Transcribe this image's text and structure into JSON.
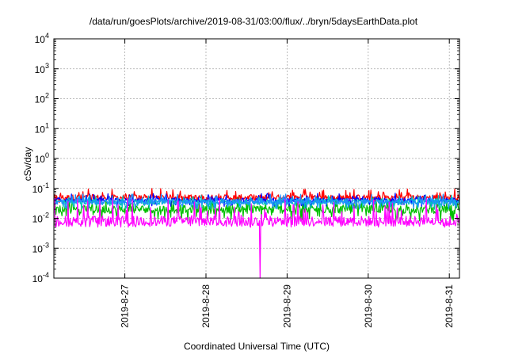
{
  "chart_data": {
    "type": "line",
    "title": "/data/run/goesPlots/archive/2019-08-31/03:00/flux/../bryn/5daysEarthData.plot",
    "xlabel": "Coordinated Universal Time (UTC)",
    "ylabel": "cSv/day",
    "yscale": "log",
    "ylim": [
      0.0001,
      10000
    ],
    "y_ticks": [
      {
        "value": 0.0001,
        "mant": "10",
        "exp": "-4"
      },
      {
        "value": 0.001,
        "mant": "10",
        "exp": "-3"
      },
      {
        "value": 0.01,
        "mant": "10",
        "exp": "-2"
      },
      {
        "value": 0.1,
        "mant": "10",
        "exp": "-1"
      },
      {
        "value": 1,
        "mant": "10",
        "exp": "0"
      },
      {
        "value": 10,
        "mant": "10",
        "exp": "1"
      },
      {
        "value": 100,
        "mant": "10",
        "exp": "2"
      },
      {
        "value": 1000,
        "mant": "10",
        "exp": "3"
      },
      {
        "value": 10000,
        "mant": "10",
        "exp": "4"
      }
    ],
    "xlim": [
      "2019-08-26 03:00",
      "2019-08-31 03:00"
    ],
    "x_ticks": [
      {
        "value": "2019-08-27",
        "label": "2019-8-27"
      },
      {
        "value": "2019-08-28",
        "label": "2019-8-28"
      },
      {
        "value": "2019-08-29",
        "label": "2019-8-29"
      },
      {
        "value": "2019-08-30",
        "label": "2019-8-30"
      },
      {
        "value": "2019-08-31",
        "label": "2019-8-31"
      }
    ],
    "grid": true,
    "series": [
      {
        "color": "#ff0000",
        "values_approx": {
          "typical": 0.05,
          "min": 0.03,
          "max": 0.1
        }
      },
      {
        "color": "#00bf00",
        "values_approx": {
          "typical": 0.02,
          "min": 0.008,
          "max": 0.05
        }
      },
      {
        "color": "#0000ff",
        "values_approx": {
          "typical": 0.04,
          "min": 0.025,
          "max": 0.07
        }
      },
      {
        "color": "#00bfbf",
        "values_approx": {
          "typical": 0.035,
          "min": 0.02,
          "max": 0.06
        }
      },
      {
        "color": "#1e90ff",
        "values_approx": {
          "typical": 0.035,
          "min": 0.02,
          "max": 0.065
        }
      },
      {
        "color": "#ff00ff",
        "values_approx": {
          "typical": 0.008,
          "min": 0.005,
          "max": 0.05
        },
        "drop_to": {
          "x": "2019-08-28 16:00",
          "y": 0.0001
        }
      }
    ]
  }
}
